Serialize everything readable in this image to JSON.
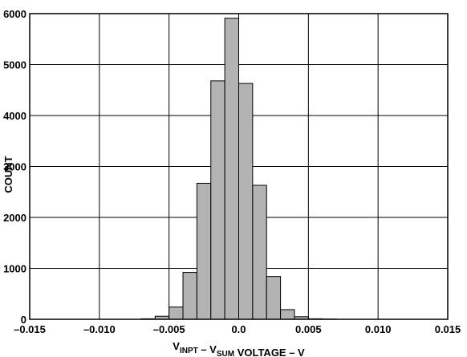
{
  "chart_data": {
    "type": "bar",
    "title": "",
    "xlabel": {
      "parts": [
        {
          "text": "V",
          "sub": "INPT"
        },
        {
          "text": " – V",
          "sub": "SUM"
        },
        {
          "text": " VOLTAGE – V",
          "sub": ""
        }
      ]
    },
    "ylabel": "COUNT",
    "xlim": [
      -0.015,
      0.015
    ],
    "ylim": [
      0,
      6000
    ],
    "x_ticks": [
      -0.015,
      -0.01,
      -0.005,
      0.0,
      0.005,
      0.01,
      0.015
    ],
    "x_tick_labels": [
      "–0.015",
      "–0.010",
      "–0.005",
      "0.0",
      "0.005",
      "0.010",
      "0.015"
    ],
    "y_ticks": [
      0,
      1000,
      2000,
      3000,
      4000,
      5000,
      6000
    ],
    "y_tick_labels": [
      "0",
      "1000",
      "2000",
      "3000",
      "4000",
      "5000",
      "6000"
    ],
    "grid": true,
    "bin_width": 0.001,
    "bins": [
      {
        "x": -0.007,
        "count": 10
      },
      {
        "x": -0.006,
        "count": 60
      },
      {
        "x": -0.005,
        "count": 240
      },
      {
        "x": -0.004,
        "count": 920
      },
      {
        "x": -0.003,
        "count": 2670
      },
      {
        "x": -0.002,
        "count": 4680
      },
      {
        "x": -0.001,
        "count": 5910
      },
      {
        "x": 0.0,
        "count": 4630
      },
      {
        "x": 0.001,
        "count": 2630
      },
      {
        "x": 0.002,
        "count": 840
      },
      {
        "x": 0.003,
        "count": 190
      },
      {
        "x": 0.004,
        "count": 50
      },
      {
        "x": 0.005,
        "count": 10
      },
      {
        "x": 0.006,
        "count": 5
      }
    ]
  }
}
